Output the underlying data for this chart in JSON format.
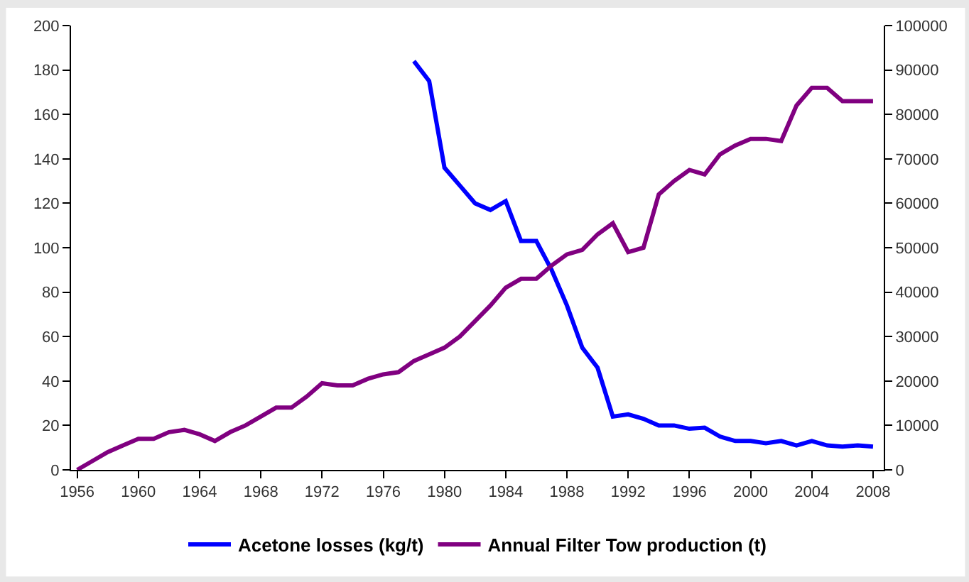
{
  "chart_data": {
    "type": "line",
    "x": [
      1956,
      1957,
      1958,
      1959,
      1960,
      1961,
      1962,
      1963,
      1964,
      1965,
      1966,
      1967,
      1968,
      1969,
      1970,
      1971,
      1972,
      1973,
      1974,
      1975,
      1976,
      1977,
      1978,
      1979,
      1980,
      1981,
      1982,
      1983,
      1984,
      1985,
      1986,
      1987,
      1988,
      1989,
      1990,
      1991,
      1992,
      1993,
      1994,
      1995,
      1996,
      1997,
      1998,
      1999,
      2000,
      2001,
      2002,
      2003,
      2004,
      2005,
      2006,
      2007,
      2008
    ],
    "series": [
      {
        "name": "Acetone losses (kg/t)",
        "color": "#0000ff",
        "values": [
          null,
          null,
          null,
          null,
          null,
          null,
          null,
          null,
          null,
          null,
          null,
          null,
          null,
          null,
          null,
          null,
          null,
          null,
          null,
          null,
          null,
          null,
          184,
          175,
          136,
          128,
          120,
          117,
          121,
          103,
          103,
          90,
          74,
          55,
          46,
          24,
          25,
          23,
          20,
          20,
          18.5,
          19,
          15,
          13,
          13,
          12,
          13,
          11,
          13,
          11,
          10.5,
          11,
          10.5
        ]
      },
      {
        "name": "Annual Filter Tow production (t)",
        "color": "#800080",
        "axis": "y2",
        "values": [
          0,
          2000,
          4000,
          5500,
          7000,
          7000,
          8500,
          9000,
          8000,
          6500,
          8500,
          10000,
          12000,
          14000,
          14000,
          16500,
          19500,
          19000,
          19000,
          20500,
          21500,
          22000,
          24500,
          26000,
          27500,
          30000,
          33500,
          37000,
          41000,
          43000,
          43000,
          46000,
          48500,
          49500,
          53000,
          55500,
          49000,
          50000,
          62000,
          65000,
          67500,
          66500,
          71000,
          73000,
          74500,
          74500,
          74000,
          82000,
          86000,
          86000,
          83000,
          83000,
          83000
        ]
      }
    ],
    "xlim": [
      1955.6,
      2008.7
    ],
    "xticks": [
      1956,
      1960,
      1964,
      1968,
      1972,
      1976,
      1980,
      1984,
      1988,
      1992,
      1996,
      2000,
      2004,
      2008
    ],
    "ylim": [
      0,
      200
    ],
    "yticks": [
      0,
      20,
      40,
      60,
      80,
      100,
      120,
      140,
      160,
      180,
      200
    ],
    "y2lim": [
      0,
      100000
    ],
    "y2ticks": [
      0,
      10000,
      20000,
      30000,
      40000,
      50000,
      60000,
      70000,
      80000,
      90000,
      100000
    ],
    "legend": "bottom",
    "marker": "none",
    "line_style": "solid"
  }
}
